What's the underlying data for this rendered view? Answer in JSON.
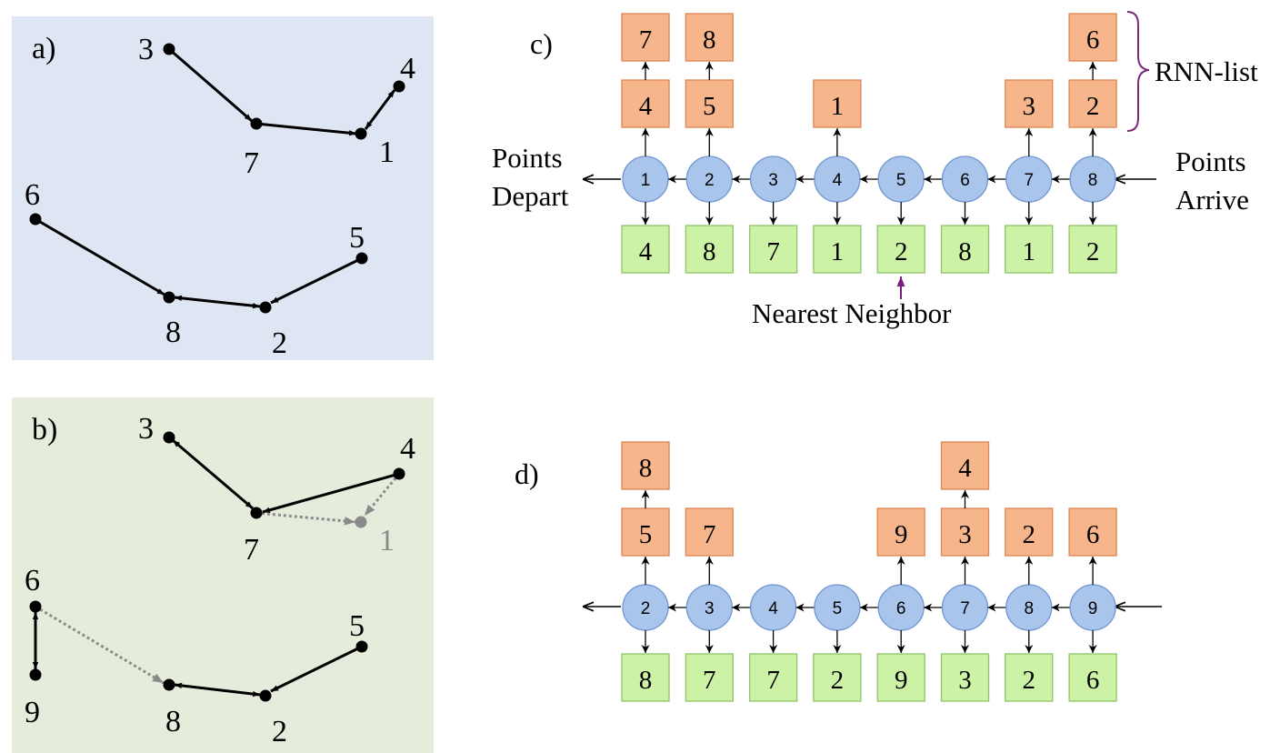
{
  "colors": {
    "panel_a_bg": "#dde6f2",
    "panel_b_bg": "#e6ecdc",
    "circle_fill": "#a9c5ec",
    "circle_stroke": "#6f95cf",
    "orange_fill": "#f7b58b",
    "orange_stroke": "#de8652",
    "green_fill": "#ccf2a6",
    "green_stroke": "#8fc46a",
    "brace": "#7a2a7a",
    "nn_arrow": "#7a1e7a",
    "removed": "#8a8a8a"
  },
  "panel_a": {
    "label": "a)",
    "points": [
      {
        "label": "3"
      },
      {
        "label": "4"
      },
      {
        "label": "7"
      },
      {
        "label": "1"
      },
      {
        "label": "6"
      },
      {
        "label": "5"
      },
      {
        "label": "8"
      },
      {
        "label": "2"
      }
    ]
  },
  "panel_b": {
    "label": "b)",
    "points": [
      {
        "label": "3"
      },
      {
        "label": "4"
      },
      {
        "label": "7"
      },
      {
        "label": "1"
      },
      {
        "label": "6"
      },
      {
        "label": "9"
      },
      {
        "label": "5"
      },
      {
        "label": "8"
      },
      {
        "label": "2"
      }
    ]
  },
  "panel_c": {
    "label": "c)",
    "rnn_label": "RNN-list",
    "depart_label": [
      "Points",
      "Depart"
    ],
    "arrive_label": [
      "Points",
      "Arrive"
    ],
    "nn_label": "Nearest Neighbor",
    "columns": [
      {
        "node": "1",
        "nn": "4",
        "rnn": [
          "4",
          "7"
        ]
      },
      {
        "node": "2",
        "nn": "8",
        "rnn": [
          "5",
          "8"
        ]
      },
      {
        "node": "3",
        "nn": "7",
        "rnn": []
      },
      {
        "node": "4",
        "nn": "1",
        "rnn": [
          "1"
        ]
      },
      {
        "node": "5",
        "nn": "2",
        "rnn": []
      },
      {
        "node": "6",
        "nn": "8",
        "rnn": []
      },
      {
        "node": "7",
        "nn": "1",
        "rnn": [
          "3"
        ]
      },
      {
        "node": "8",
        "nn": "2",
        "rnn": [
          "2",
          "6"
        ]
      }
    ]
  },
  "panel_d": {
    "label": "d)",
    "columns": [
      {
        "node": "2",
        "nn": "8",
        "rnn": [
          "5",
          "8"
        ]
      },
      {
        "node": "3",
        "nn": "7",
        "rnn": [
          "7"
        ]
      },
      {
        "node": "4",
        "nn": "7",
        "rnn": []
      },
      {
        "node": "5",
        "nn": "2",
        "rnn": []
      },
      {
        "node": "6",
        "nn": "9",
        "rnn": [
          "9"
        ]
      },
      {
        "node": "7",
        "nn": "3",
        "rnn": [
          "3",
          "4"
        ]
      },
      {
        "node": "8",
        "nn": "2",
        "rnn": [
          "2"
        ]
      },
      {
        "node": "9",
        "nn": "6",
        "rnn": [
          "6"
        ]
      }
    ]
  }
}
